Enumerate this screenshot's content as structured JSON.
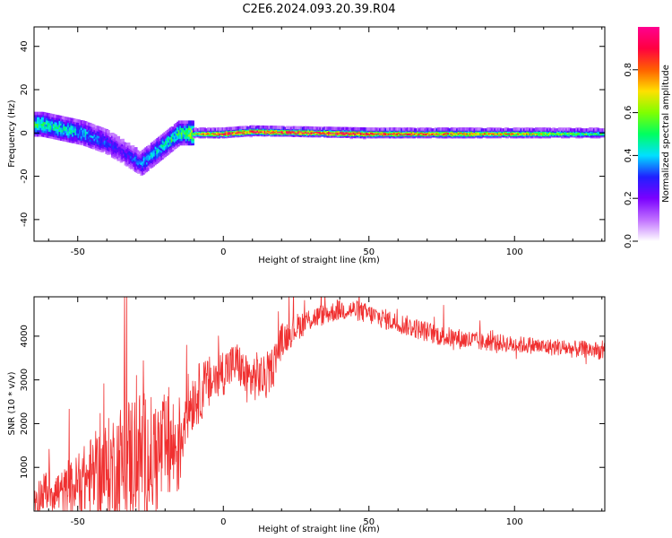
{
  "title": "C2E6.2024.093.20.39.R04",
  "chart_data": [
    {
      "type": "heatmap",
      "xlabel": "Height of straight line (km)",
      "ylabel": "Frequency (Hz)",
      "xlim": [
        -65,
        131
      ],
      "ylim": [
        -50,
        49
      ],
      "xticks": [
        -50,
        0,
        50,
        100
      ],
      "yticks": [
        -40,
        -20,
        0,
        20,
        40
      ],
      "colorbar": {
        "label": "Normalized spectral amplitude",
        "range": [
          0,
          1
        ],
        "ticks": [
          "0.0",
          "0.2",
          "0.4",
          "0.6",
          "0.8"
        ],
        "colors": [
          "#ffffff",
          "#c070ff",
          "#7a00ff",
          "#2020ff",
          "#00e0ff",
          "#00ff60",
          "#80ff00",
          "#ffe000",
          "#ff6000",
          "#ff0040",
          "#ff0090"
        ]
      },
      "ridge": [
        {
          "x": -62,
          "y": 4,
          "amp": 0.5
        },
        {
          "x": -55,
          "y": 2,
          "amp": 0.45
        },
        {
          "x": -48,
          "y": 0,
          "amp": 0.4
        },
        {
          "x": -40,
          "y": -4,
          "amp": 0.3
        },
        {
          "x": -35,
          "y": -8,
          "amp": 0.25
        },
        {
          "x": -28,
          "y": -14,
          "amp": 0.35
        },
        {
          "x": -15,
          "y": 0,
          "amp": 0.5
        },
        {
          "x": 0,
          "y": 0,
          "amp": 0.9
        },
        {
          "x": 10,
          "y": 1,
          "amp": 0.9
        },
        {
          "x": 50,
          "y": 0,
          "amp": 0.9
        },
        {
          "x": 100,
          "y": 0,
          "amp": 0.75
        },
        {
          "x": 131,
          "y": 0,
          "amp": 0.5
        }
      ]
    },
    {
      "type": "line",
      "xlabel": "Height of straight line (km)",
      "ylabel": "SNR (10 * v/v)",
      "xlim": [
        -65,
        131
      ],
      "ylim": [
        0,
        4900
      ],
      "xticks": [
        -50,
        0,
        50,
        100
      ],
      "yticks": [
        1000,
        2000,
        3000,
        4000
      ],
      "color": "#f03030",
      "series": [
        {
          "x": [
            -65,
            -60,
            -55,
            -50,
            -45,
            -40,
            -35,
            -30,
            -25,
            -20,
            -15,
            -13,
            -10,
            -5,
            0,
            5,
            8,
            12,
            15,
            20,
            25,
            30,
            35,
            40,
            45,
            50,
            55,
            60,
            65,
            70,
            75,
            80,
            85,
            90,
            95,
            100,
            105,
            110,
            115,
            120,
            125,
            131
          ],
          "y": [
            300,
            500,
            400,
            600,
            800,
            900,
            1100,
            1300,
            1200,
            1400,
            1500,
            2300,
            2600,
            2900,
            3200,
            3400,
            3000,
            3100,
            3000,
            3900,
            4200,
            4400,
            4500,
            4600,
            4600,
            4500,
            4400,
            4300,
            4200,
            4100,
            4000,
            3950,
            3900,
            3850,
            3850,
            3800,
            3800,
            3750,
            3750,
            3700,
            3700,
            3650
          ],
          "spread": [
            500,
            600,
            700,
            900,
            1200,
            1500,
            1800,
            2000,
            1800,
            1600,
            1500,
            1000,
            900,
            800,
            700,
            600,
            700,
            700,
            600,
            500,
            400,
            350,
            300,
            300,
            300,
            300,
            300,
            300,
            300,
            300,
            300,
            300,
            300,
            250,
            250,
            250,
            250,
            250,
            250,
            250,
            250,
            250
          ]
        }
      ]
    }
  ]
}
